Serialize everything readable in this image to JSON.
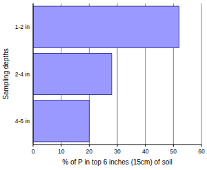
{
  "chart_data": {
    "type": "bar",
    "orientation": "horizontal",
    "categories": [
      "1-2 in",
      "2-4 in",
      "4-6 in"
    ],
    "values": [
      52,
      28,
      20
    ],
    "color": "#9999ff",
    "xlim": [
      0,
      60
    ],
    "xticks": [
      0,
      10,
      20,
      30,
      40,
      50,
      60
    ],
    "grid": true,
    "x_label": "% of P in top 6 inches (15cm) of soil",
    "y_label": "Sampling depths"
  }
}
